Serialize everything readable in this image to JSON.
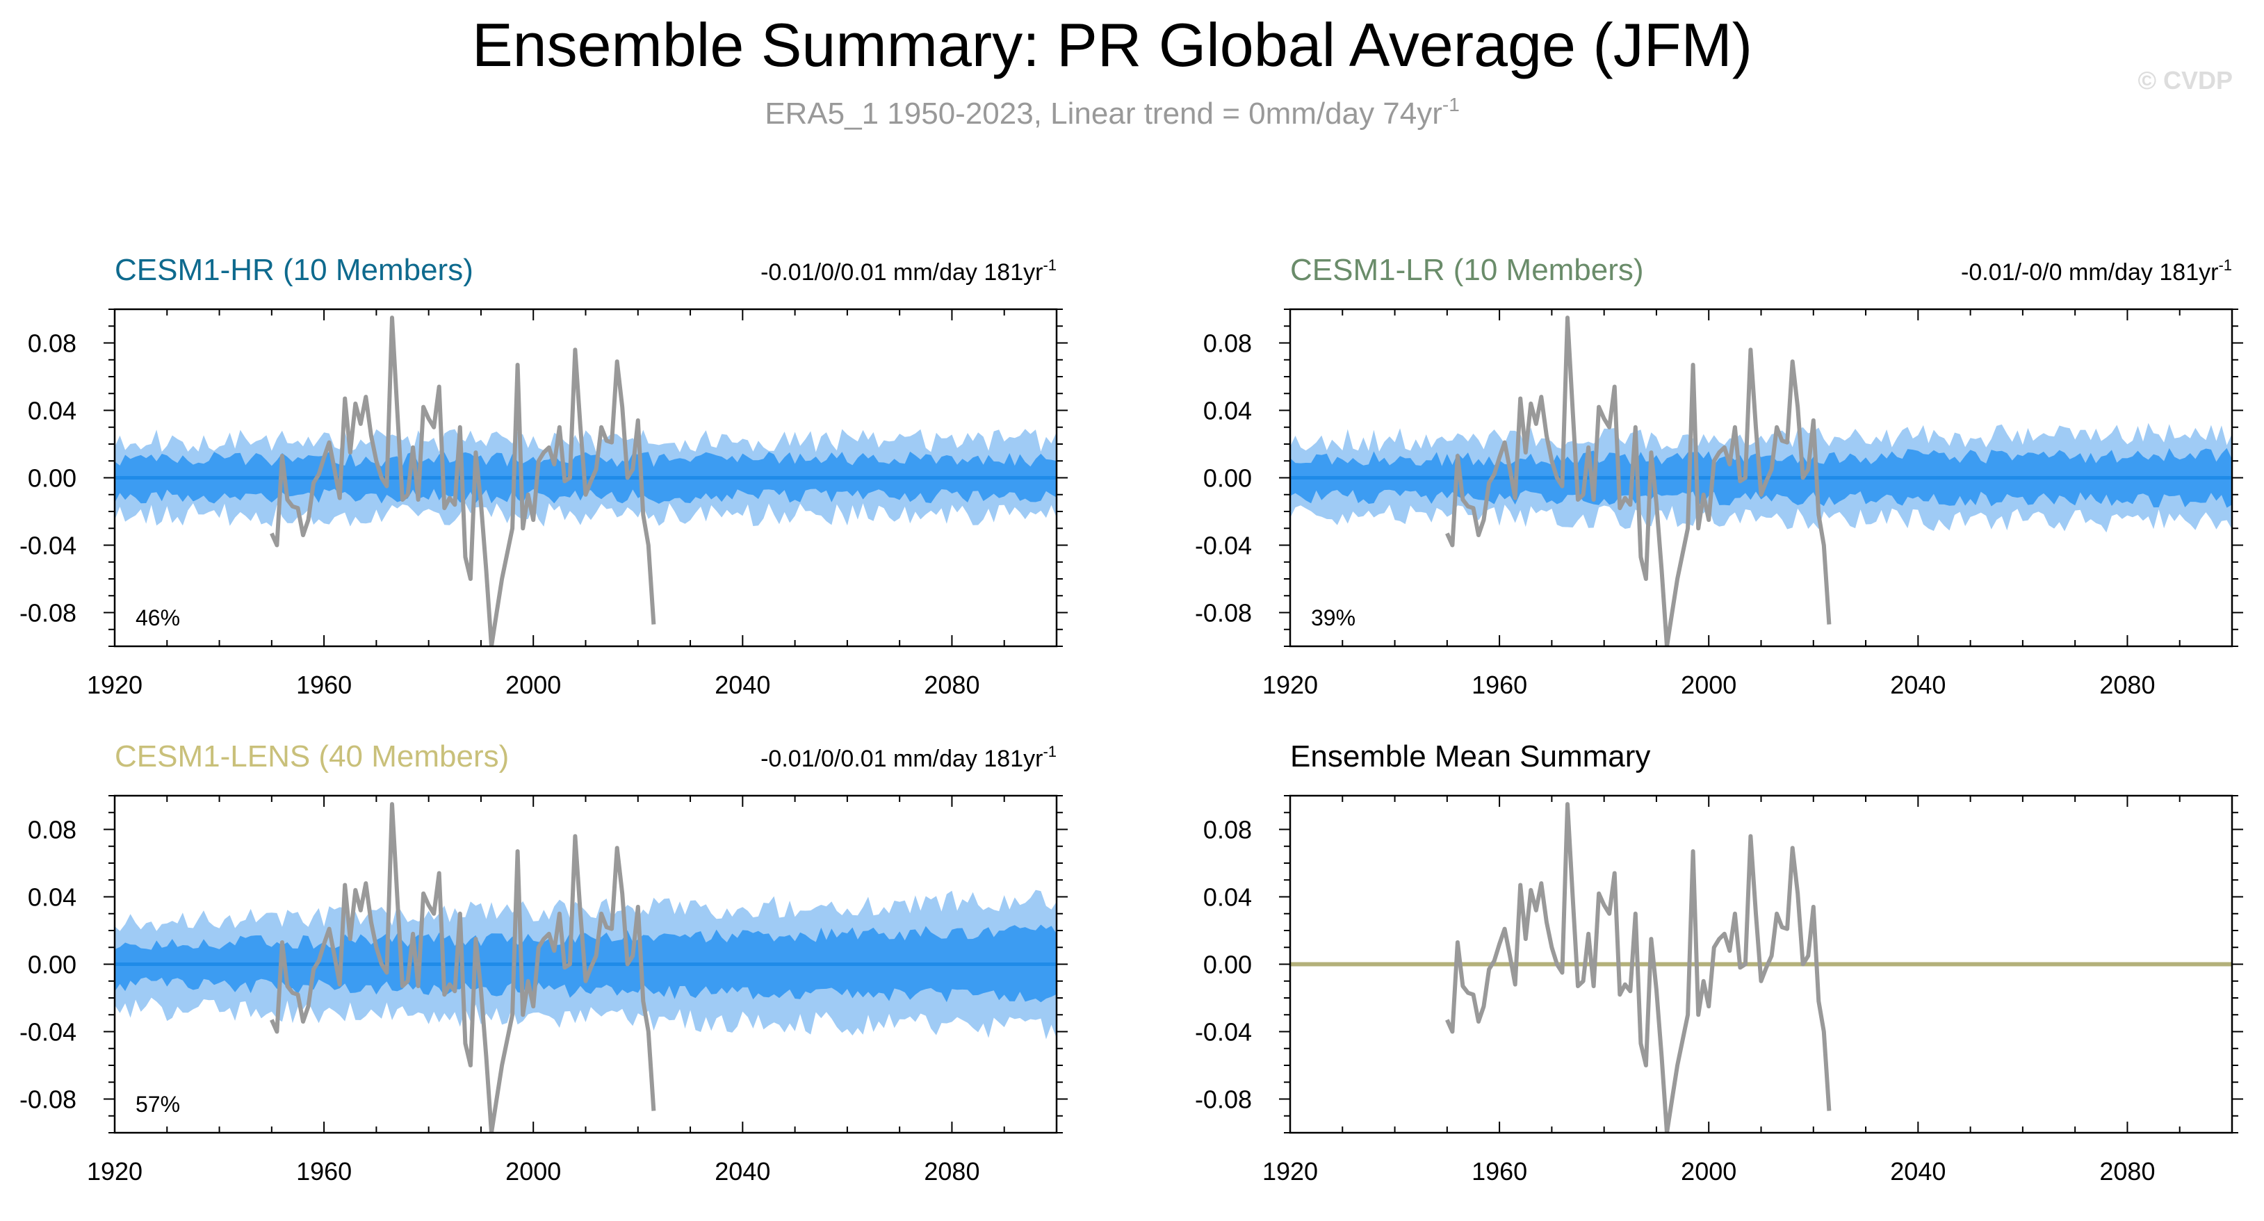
{
  "title": "Ensemble Summary: PR Global Average (JFM)",
  "subtitle": "ERA5_1 1950-2023, Linear trend = 0mm/day 74yr",
  "subtitle_sup": "-1",
  "watermark": "© CVDP",
  "obs_years": [
    1950,
    1951,
    1952,
    1953,
    1954,
    1955,
    1956,
    1957,
    1958,
    1959,
    1960,
    1961,
    1962,
    1963,
    1964,
    1965,
    1966,
    1967,
    1968,
    1969,
    1970,
    1971,
    1972,
    1973,
    1974,
    1975,
    1976,
    1977,
    1978,
    1979,
    1980,
    1981,
    1982,
    1983,
    1984,
    1985,
    1986,
    1987,
    1988,
    1989,
    1990,
    1991,
    1992,
    1993,
    1994,
    1995,
    1996,
    1997,
    1998,
    1999,
    2000,
    2001,
    2002,
    2003,
    2004,
    2005,
    2006,
    2007,
    2008,
    2009,
    2010,
    2011,
    2012,
    2013,
    2014,
    2015,
    2016,
    2017,
    2018,
    2019,
    2020,
    2021,
    2022,
    2023
  ],
  "obs_values": [
    -0.033,
    -0.04,
    0.013,
    -0.013,
    -0.017,
    -0.018,
    -0.034,
    -0.025,
    -0.003,
    0.002,
    0.012,
    0.021,
    0.005,
    -0.012,
    0.047,
    0.015,
    0.044,
    0.032,
    0.048,
    0.025,
    0.01,
    0.0,
    -0.005,
    0.095,
    0.04,
    -0.013,
    -0.01,
    0.018,
    -0.013,
    0.042,
    0.035,
    0.03,
    0.054,
    -0.018,
    -0.012,
    -0.016,
    0.03,
    -0.047,
    -0.06,
    0.015,
    -0.015,
    -0.055,
    -0.1,
    -0.08,
    -0.06,
    -0.045,
    -0.03,
    0.067,
    -0.03,
    -0.01,
    -0.025,
    0.01,
    0.015,
    0.018,
    0.008,
    0.03,
    -0.002,
    0.0,
    0.076,
    0.03,
    -0.01,
    -0.002,
    0.005,
    0.03,
    0.022,
    0.021,
    0.069,
    0.042,
    0.0,
    0.005,
    0.034,
    -0.022,
    -0.04,
    -0.087
  ],
  "ensemble_year_range": [
    1920,
    2100
  ],
  "panels": [
    {
      "name": "CESM1-HR (10 Members)",
      "title_color": "#0e6a8e",
      "trend_text": "-0.01/0/0.01 mm/day 181yr",
      "trend_sup": "-1",
      "percent": "46%",
      "has_spread": true,
      "inner_spread": 0.011,
      "outer_spread": 0.022,
      "spread_growth": 0.0,
      "mean": 0.0,
      "seed": 11,
      "mean_color": "#1f8be8"
    },
    {
      "name": "CESM1-LR (10 Members)",
      "title_color": "#6a8c6a",
      "trend_text": "-0.01/-0/0 mm/day 181yr",
      "trend_sup": "-1",
      "percent": "39%",
      "has_spread": true,
      "inner_spread": 0.011,
      "outer_spread": 0.022,
      "spread_growth": 0.004,
      "mean": 0.0,
      "seed": 23,
      "mean_color": "#1f8be8"
    },
    {
      "name": "CESM1-LENS (40 Members)",
      "title_color": "#c9c07a",
      "trend_text": "-0.01/0/0.01 mm/day 181yr",
      "trend_sup": "-1",
      "percent": "57%",
      "has_spread": true,
      "inner_spread": 0.012,
      "outer_spread": 0.026,
      "spread_growth": 0.012,
      "mean": 0.0,
      "seed": 37,
      "mean_color": "#1f8be8"
    },
    {
      "name": "Ensemble Mean Summary",
      "title_color": "#000000",
      "trend_text": "",
      "trend_sup": "",
      "percent": "",
      "has_spread": false,
      "mean": 0.0,
      "mean_color": "#b3b07a"
    }
  ],
  "chart_data": {
    "type": "line",
    "xlim": [
      1920,
      2100
    ],
    "ylim": [
      -0.1,
      0.1
    ],
    "x_ticks": [
      1920,
      1960,
      2000,
      2040,
      2080
    ],
    "y_ticks": [
      0.08,
      0.04,
      0.0,
      -0.04,
      -0.08
    ],
    "y_tick_labels": [
      "0.08",
      "0.04",
      "0.00",
      "-0.04",
      "-0.08"
    ],
    "grid": false,
    "colors": {
      "outer_spread": "#9fcbf5",
      "inner_spread": "#3c9cf2",
      "ensemble_mean": "#1f8be8",
      "observations": "#999999"
    }
  }
}
